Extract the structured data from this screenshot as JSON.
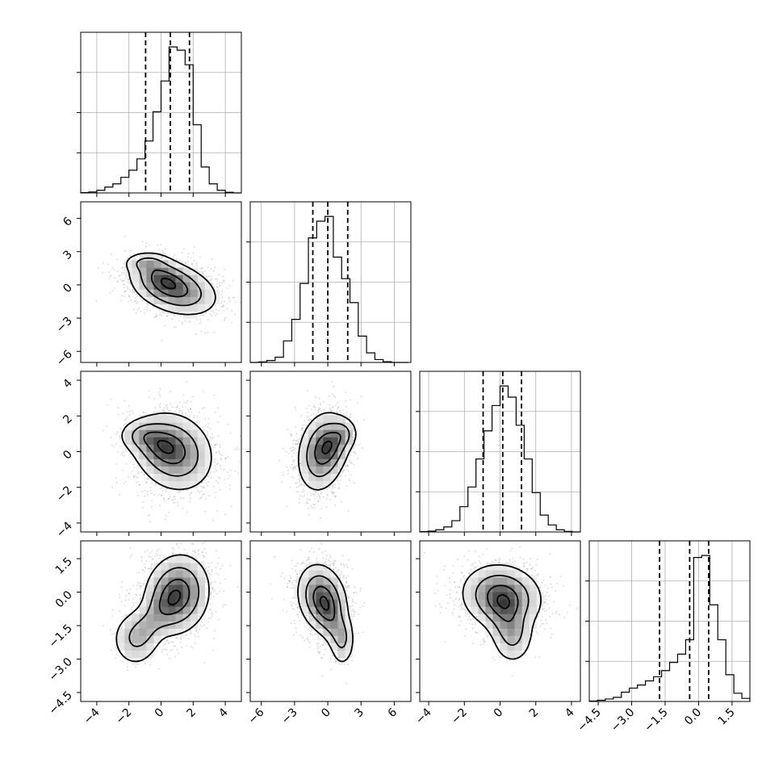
{
  "chart_data": {
    "type": "corner",
    "num_params": 4,
    "grid": true,
    "params": [
      {
        "index": 0,
        "range": [
          -5.0,
          5.0
        ],
        "ticks": [
          -4,
          -2,
          0,
          2,
          4
        ],
        "tick_labels": [
          "−4",
          "−2",
          "0",
          "2",
          "4"
        ],
        "quantiles": [
          -0.96,
          0.58,
          1.77
        ],
        "hist_edges": [
          -5.0,
          -4.5,
          -4.0,
          -3.5,
          -3.0,
          -2.5,
          -2.0,
          -1.5,
          -1.0,
          -0.5,
          0.0,
          0.5,
          1.0,
          1.5,
          2.0,
          2.5,
          3.0,
          3.5,
          4.0,
          4.5,
          5.0
        ],
        "hist_counts": [
          1,
          3,
          8,
          18,
          28,
          48,
          70,
          105,
          160,
          250,
          345,
          450,
          440,
          395,
          210,
          80,
          28,
          8,
          2,
          0
        ]
      },
      {
        "index": 1,
        "range": [
          -7.0,
          7.5
        ],
        "ticks": [
          -6,
          -3,
          0,
          3,
          6
        ],
        "tick_labels": [
          "−6",
          "−3",
          "0",
          "3",
          "6"
        ],
        "quantiles": [
          -1.35,
          0.0,
          1.8
        ],
        "hist_edges": [
          -7.0,
          -6.25,
          -5.5,
          -4.75,
          -4.0,
          -3.25,
          -2.5,
          -1.75,
          -1.0,
          -0.25,
          0.5,
          1.25,
          2.0,
          2.75,
          3.5,
          4.25,
          5.0,
          5.75,
          6.5,
          7.25
        ],
        "hist_counts": [
          0,
          2,
          8,
          22,
          90,
          180,
          330,
          520,
          590,
          610,
          440,
          350,
          250,
          110,
          40,
          12,
          3,
          0,
          0
        ]
      },
      {
        "index": 2,
        "range": [
          -4.5,
          4.5
        ],
        "ticks": [
          -4,
          -2,
          0,
          2,
          4
        ],
        "tick_labels": [
          "−4",
          "−2",
          "0",
          "2",
          "4"
        ],
        "quantiles": [
          -0.95,
          0.15,
          1.2
        ],
        "hist_edges": [
          -4.5,
          -4.05,
          -3.6,
          -3.15,
          -2.7,
          -2.25,
          -1.8,
          -1.35,
          -0.9,
          -0.45,
          0.0,
          0.45,
          0.9,
          1.35,
          1.8,
          2.25,
          2.7,
          3.15,
          3.6,
          4.05,
          4.5
        ],
        "hist_counts": [
          1,
          3,
          8,
          18,
          40,
          90,
          160,
          260,
          360,
          450,
          520,
          480,
          380,
          260,
          140,
          60,
          25,
          8,
          2,
          0
        ]
      },
      {
        "index": 3,
        "range": [
          -4.9,
          2.3
        ],
        "ticks": [
          -4.5,
          -3.0,
          -1.5,
          0.0,
          1.5
        ],
        "tick_labels": [
          "−4.5",
          "−3.0",
          "−1.5",
          "0.0",
          "1.5"
        ],
        "quantiles": [
          -1.75,
          -0.4,
          0.45
        ],
        "hist_edges": [
          -4.9,
          -4.54,
          -4.18,
          -3.82,
          -3.46,
          -3.1,
          -2.74,
          -2.38,
          -2.02,
          -1.66,
          -1.3,
          -0.94,
          -0.58,
          -0.22,
          0.14,
          0.5,
          0.86,
          1.22,
          1.58,
          1.94,
          2.3
        ],
        "hist_counts": [
          2,
          6,
          12,
          20,
          45,
          65,
          80,
          100,
          120,
          150,
          190,
          230,
          300,
          700,
          710,
          470,
          300,
          130,
          40,
          15
        ]
      }
    ],
    "pairs": [
      {
        "x": 0,
        "y": 1,
        "center": [
          0.8,
          -0.3
        ],
        "sx": 1.2,
        "sy": 1.1,
        "rho": -0.35,
        "levels": [
          0.08,
          0.3,
          0.65,
          0.93
        ],
        "tail": {
          "offset": [
            -1.7,
            2.3
          ],
          "sx": 0.65,
          "sy": 0.45,
          "weight": 0.4
        }
      },
      {
        "x": 0,
        "y": 2,
        "center": [
          0.8,
          0.0
        ],
        "sx": 1.1,
        "sy": 1.0,
        "rho": -0.15,
        "levels": [
          0.08,
          0.3,
          0.65,
          0.93
        ],
        "tail": {
          "offset": [
            -2.0,
            0.9
          ],
          "sx": 0.7,
          "sy": 0.45,
          "weight": 0.4
        }
      },
      {
        "x": 0,
        "y": 3,
        "center": [
          1.0,
          -0.1
        ],
        "sx": 0.9,
        "sy": 0.8,
        "rho": 0.1,
        "levels": [
          0.08,
          0.3,
          0.65,
          0.93
        ],
        "tail": {
          "offset": [
            -2.6,
            -2.0
          ],
          "sx": 0.7,
          "sy": 0.6,
          "weight": 0.35
        }
      },
      {
        "x": 1,
        "y": 2,
        "center": [
          -0.5,
          0.0
        ],
        "sx": 1.0,
        "sy": 1.0,
        "rho": 0.2,
        "levels": [
          0.08,
          0.3,
          0.65,
          0.93
        ],
        "tail": {
          "offset": [
            2.0,
            1.0
          ],
          "sx": 0.6,
          "sy": 0.45,
          "weight": 0.35
        }
      },
      {
        "x": 1,
        "y": 3,
        "center": [
          -0.5,
          -0.3
        ],
        "sx": 1.0,
        "sy": 0.7,
        "rho": -0.2,
        "levels": [
          0.08,
          0.3,
          0.65,
          0.93
        ],
        "tail": {
          "offset": [
            1.8,
            -1.9
          ],
          "sx": 0.55,
          "sy": 0.55,
          "weight": 0.35
        }
      },
      {
        "x": 2,
        "y": 3,
        "center": [
          0.1,
          -0.2
        ],
        "sx": 1.0,
        "sy": 0.65,
        "rho": -0.1,
        "levels": [
          0.08,
          0.3,
          0.65,
          0.93
        ],
        "tail": {
          "offset": [
            0.6,
            -1.9
          ],
          "sx": 0.55,
          "sy": 0.55,
          "weight": 0.35
        }
      }
    ]
  }
}
